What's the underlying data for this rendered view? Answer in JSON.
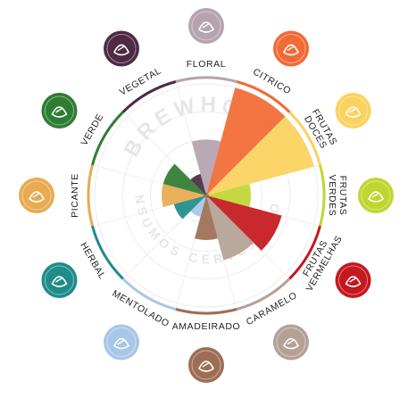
{
  "watermark": {
    "brand": "BREWHOUSE",
    "subtitle": "INSUMOS CERVEJEIROS"
  },
  "chart_data": {
    "type": "polar-area",
    "title": "",
    "categories": [
      "FLORAL",
      "CITRICO",
      "FRUTAS DOCES",
      "FRUTAS VERDES",
      "FRUTAS VERMELHAS",
      "CARAMELO",
      "AMADEIRADO",
      "MENTOLADO",
      "HERBAL",
      "PICANTE",
      "VERDE",
      "VEGETAL"
    ],
    "values": [
      5,
      10,
      10,
      4,
      7,
      6,
      4,
      2,
      3,
      4,
      4,
      2
    ],
    "max": 10,
    "colors": [
      "#b5a3ae",
      "#f26a34",
      "#fcd25e",
      "#bfd631",
      "#c5181f",
      "#b4a195",
      "#9e6e54",
      "#a7c7e7",
      "#1f8c8a",
      "#e8aa52",
      "#2f7d32",
      "#4e2a44"
    ],
    "icons": [
      "flower-icon",
      "lemon-icon",
      "pineapple-icon",
      "pear-icon",
      "berries-icon",
      "caramel-icon",
      "wood-icon",
      "mint-icon",
      "herb-leaf-icon",
      "pepper-icon",
      "hop-icon",
      "onion-icon"
    ],
    "grid": true
  }
}
